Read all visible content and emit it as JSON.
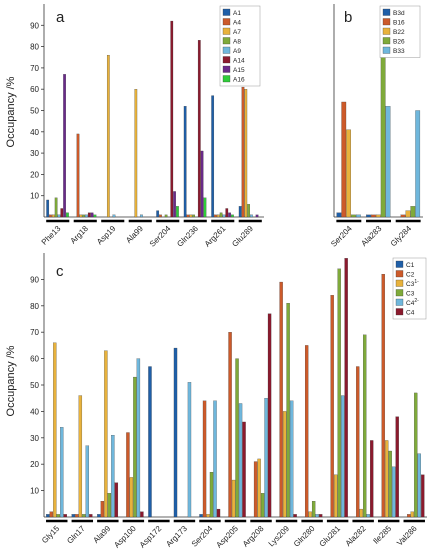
{
  "chart_data": [
    {
      "panel": "a",
      "type": "bar",
      "ylabel": "Occupancy /%",
      "ylim": [
        0,
        100
      ],
      "yticks": [
        10,
        20,
        30,
        40,
        50,
        60,
        70,
        80,
        90
      ],
      "legend_position": "top-right",
      "categories": [
        "Phe13",
        "Arg18",
        "Asp19",
        "Ala99",
        "Ser204",
        "Gln236",
        "Arg261",
        "Glu289"
      ],
      "series": [
        {
          "name": "A1",
          "color": "#1f5fa8",
          "values": [
            8,
            0,
            0,
            0,
            3,
            52,
            57,
            5
          ]
        },
        {
          "name": "A4",
          "color": "#cc5a2a",
          "values": [
            1,
            39,
            0,
            0,
            1,
            1,
            1,
            61
          ]
        },
        {
          "name": "A7",
          "color": "#e8b23c",
          "values": [
            1,
            1,
            76,
            60,
            0,
            1,
            1,
            60
          ]
        },
        {
          "name": "A8",
          "color": "#7faa3a",
          "values": [
            9,
            1,
            0,
            0,
            1,
            1,
            2,
            6
          ]
        },
        {
          "name": "A9",
          "color": "#6fb7dc",
          "values": [
            1,
            1,
            1,
            1,
            0,
            0,
            1,
            1
          ]
        },
        {
          "name": "A14",
          "color": "#8b1a2e",
          "values": [
            4,
            2,
            0,
            0,
            92,
            83,
            4,
            0
          ]
        },
        {
          "name": "A15",
          "color": "#6a2a8a",
          "values": [
            67,
            2,
            0,
            0,
            12,
            31,
            2,
            1
          ]
        },
        {
          "name": "A16",
          "color": "#2fcc3a",
          "values": [
            2,
            1,
            0,
            0,
            5,
            9,
            1,
            0
          ]
        }
      ]
    },
    {
      "panel": "b",
      "type": "bar",
      "ylim": [
        0,
        100
      ],
      "legend_position": "top-right",
      "categories": [
        "Ser204",
        "Ala283",
        "Gly284"
      ],
      "series": [
        {
          "name": "B3d",
          "color": "#1f5fa8",
          "values": [
            2,
            1,
            0
          ]
        },
        {
          "name": "B16",
          "color": "#cc5a2a",
          "values": [
            54,
            1,
            1
          ]
        },
        {
          "name": "B22",
          "color": "#e8b23c",
          "values": [
            41,
            1,
            3
          ]
        },
        {
          "name": "B26",
          "color": "#7faa3a",
          "values": [
            1,
            94,
            5
          ]
        },
        {
          "name": "B33",
          "color": "#6fb7dc",
          "values": [
            1,
            52,
            50
          ]
        }
      ]
    },
    {
      "panel": "c",
      "type": "bar",
      "ylabel": "Occupancy /%",
      "ylim": [
        0,
        100
      ],
      "yticks": [
        10,
        20,
        30,
        40,
        50,
        60,
        70,
        80,
        90
      ],
      "legend_position": "top-right",
      "categories": [
        "Gly15",
        "Gln17",
        "Ala99",
        "Asp100",
        "Asp172",
        "Arg173",
        "Ser204",
        "Asp205",
        "Arg208",
        "Lys209",
        "Gln280",
        "Glu281",
        "Ala282",
        "Ile285",
        "Val286"
      ],
      "series": [
        {
          "name": "C1",
          "sup": "",
          "color": "#1f5fa8",
          "values": [
            1,
            1,
            1,
            0,
            57,
            64,
            1,
            0,
            0,
            0,
            0,
            0,
            0,
            0,
            0
          ]
        },
        {
          "name": "C2",
          "sup": "",
          "color": "#cc5a2a",
          "values": [
            2,
            1,
            6,
            32,
            0,
            0,
            44,
            70,
            21,
            89,
            65,
            84,
            57,
            92,
            1
          ]
        },
        {
          "name": "C3",
          "sup": "1-",
          "color": "#e8b23c",
          "values": [
            66,
            46,
            63,
            15,
            0,
            0,
            1,
            14,
            22,
            40,
            2,
            16,
            3,
            29,
            2
          ]
        },
        {
          "name": "C3",
          "sup": "",
          "color": "#7faa3a",
          "values": [
            1,
            1,
            9,
            53,
            0,
            0,
            17,
            60,
            9,
            81,
            6,
            94,
            69,
            25,
            47
          ]
        },
        {
          "name": "C4",
          "sup": "2-",
          "color": "#6fb7dc",
          "values": [
            34,
            27,
            31,
            60,
            0,
            51,
            44,
            43,
            45,
            44,
            1,
            46,
            1,
            19,
            24
          ]
        },
        {
          "name": "C4",
          "sup": "",
          "color": "#8b1a2e",
          "values": [
            1,
            1,
            13,
            2,
            0,
            0,
            3,
            36,
            77,
            1,
            1,
            98,
            29,
            38,
            16
          ]
        }
      ]
    }
  ]
}
